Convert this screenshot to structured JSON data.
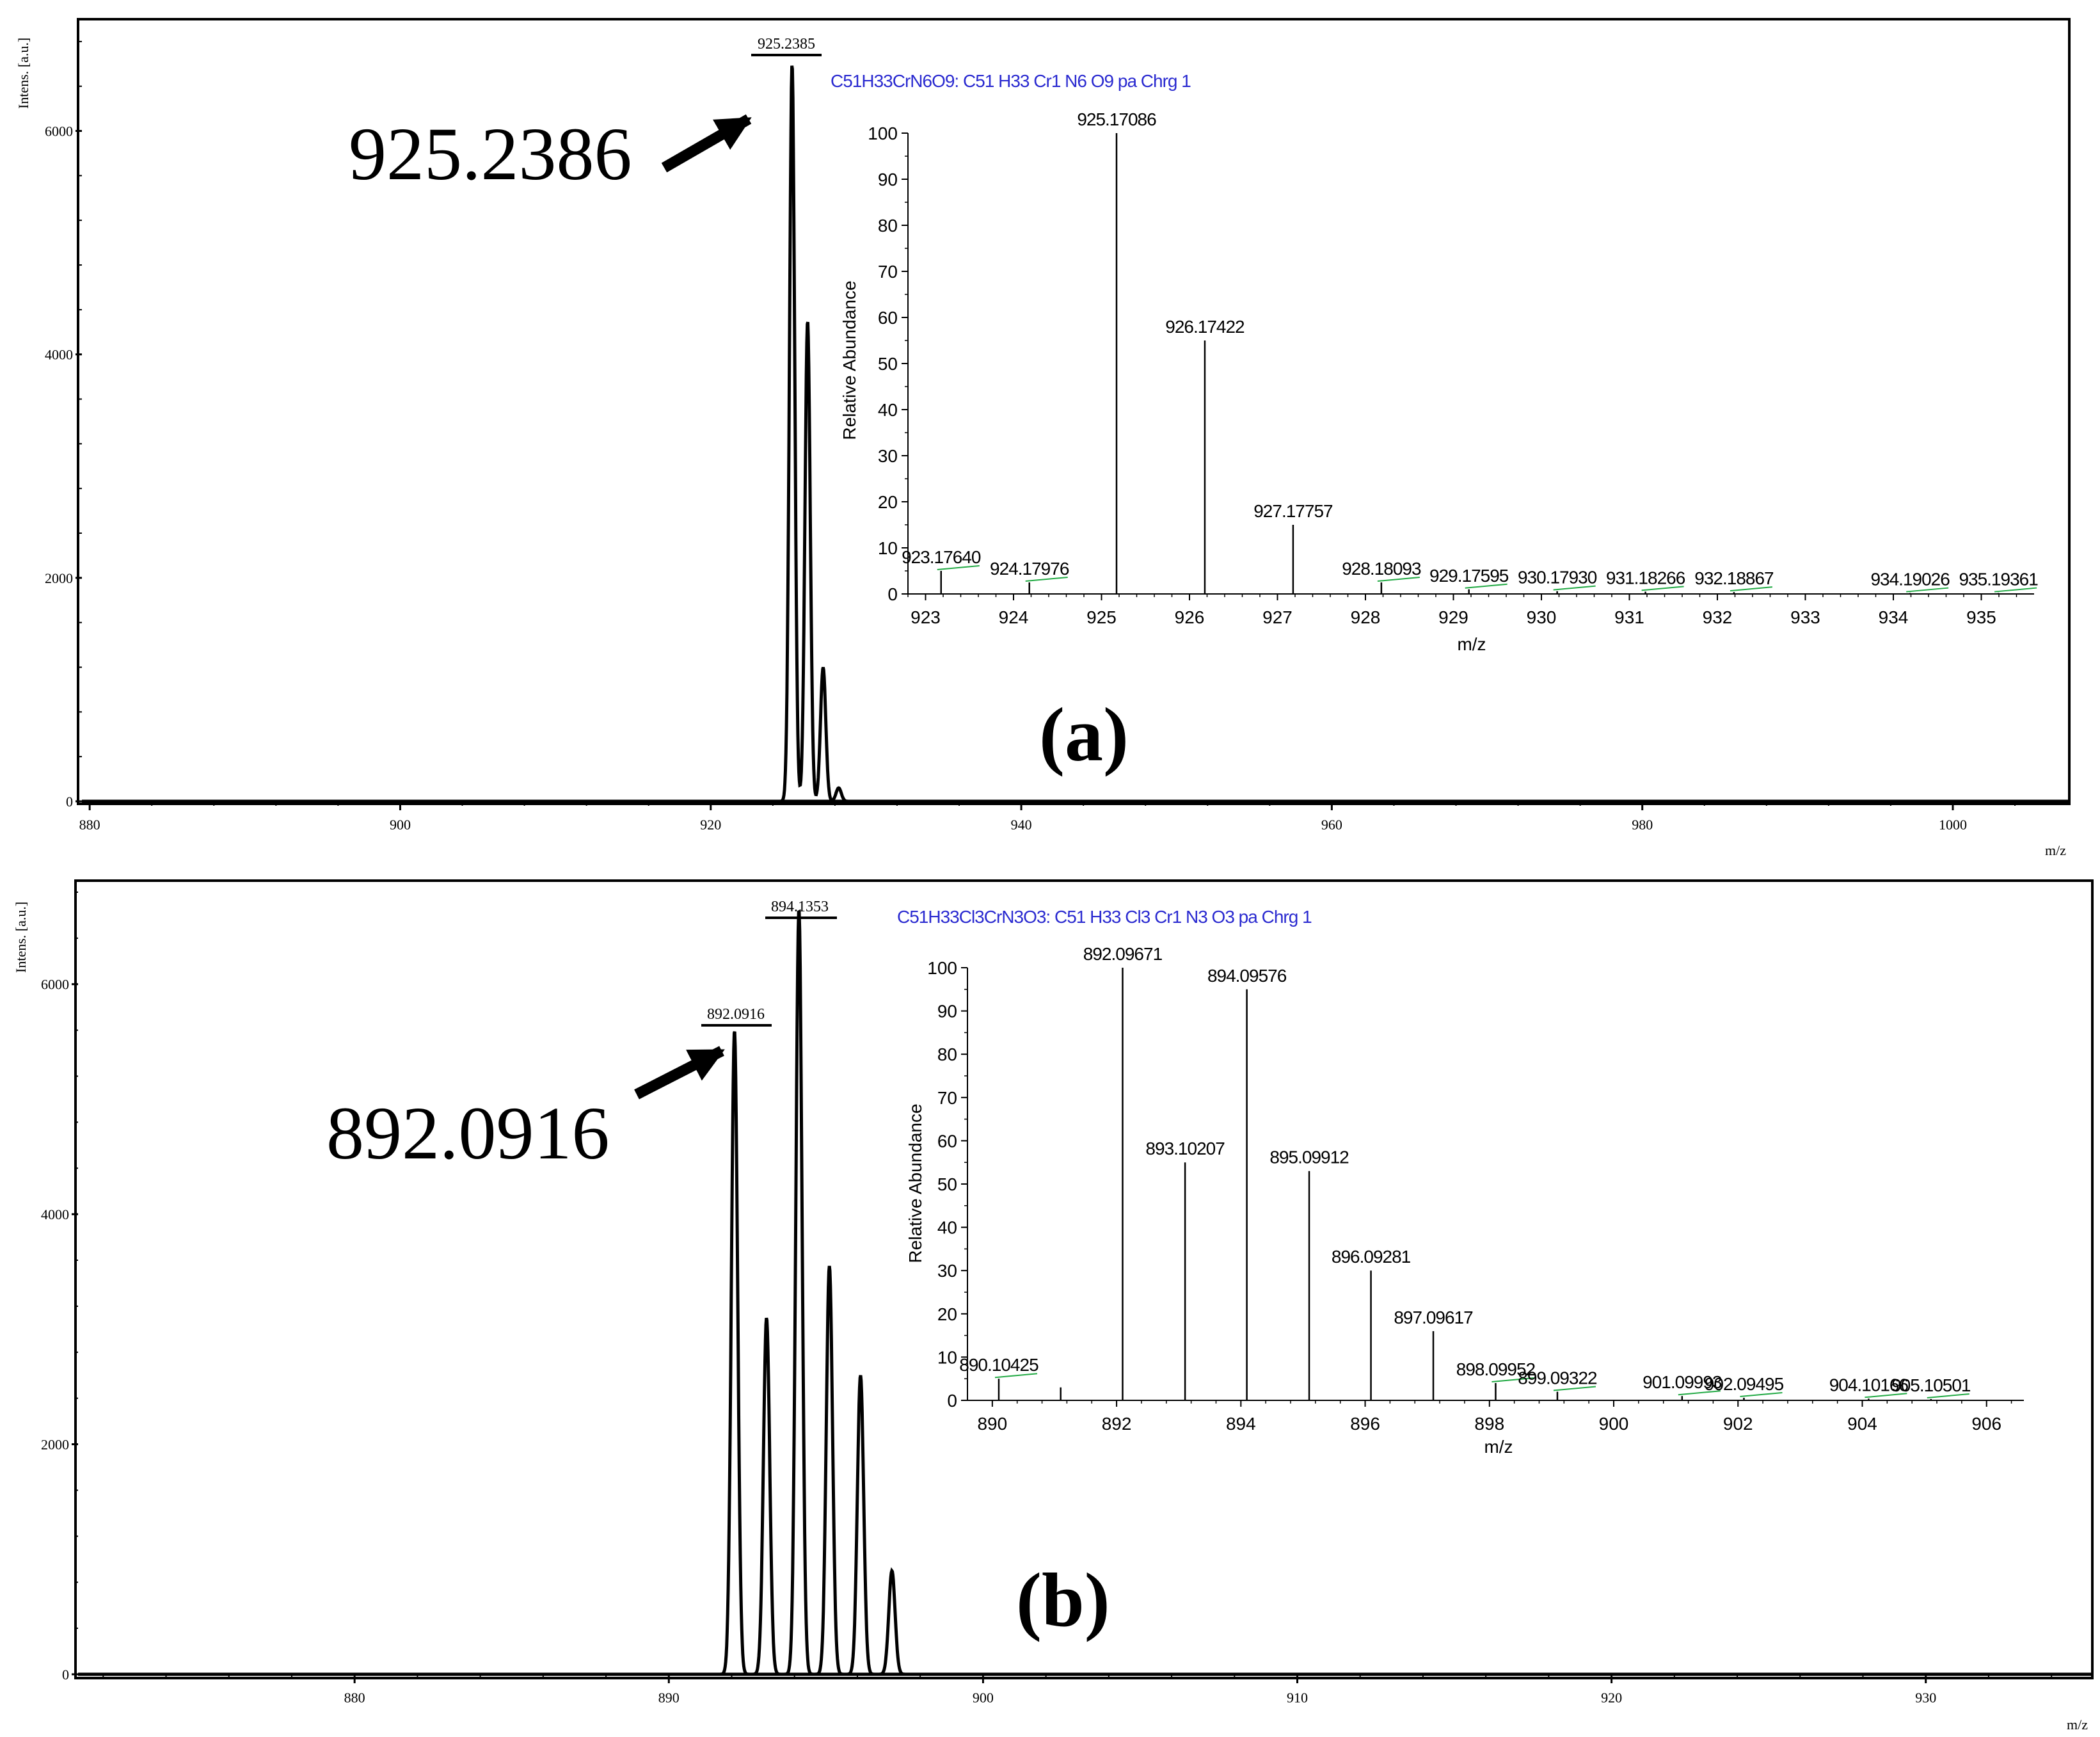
{
  "panels": [
    {
      "id": "a",
      "panel_label": "(a)",
      "arrow_label": "925.2386",
      "peak_label": "925.2385",
      "ylabel": "Intens. [a.u.]",
      "xlabel": "m/z",
      "inset_formula": "C51H33CrN6O9: C51 H33 Cr1 N6 O9 pa Chrg 1"
    },
    {
      "id": "b",
      "panel_label": "(b)",
      "arrow_label": "892.0916",
      "peak_labels": [
        "892.0916",
        "894.1353"
      ],
      "ylabel": "Intens. [a.u.]",
      "xlabel": "m/z",
      "inset_formula": "C51H33Cl3CrN3O3: C51 H33 Cl3 Cr1 N3 O3 pa Chrg 1"
    }
  ],
  "chart_data": [
    {
      "type": "line",
      "panel": "a-main",
      "ylabel": "Intens. [a.u.]",
      "xlabel": "m/z",
      "xlim": [
        879.5,
        1007.5
      ],
      "ylim": [
        0,
        7000
      ],
      "xticks": [
        880,
        900,
        920,
        940,
        960,
        980,
        1000
      ],
      "yticks": [
        0,
        2000,
        4000,
        6000
      ],
      "peaks": [
        {
          "x": 925.24,
          "y": 6600
        },
        {
          "x": 926.24,
          "y": 4300
        },
        {
          "x": 927.24,
          "y": 1200
        },
        {
          "x": 928.24,
          "y": 120
        }
      ],
      "annotations": [
        "925.2385",
        "925.2386"
      ]
    },
    {
      "type": "bar",
      "panel": "a-inset",
      "title": "C51H33CrN6O9: C51 H33 Cr1 N6 O9 pa Chrg 1",
      "xlabel": "m/z",
      "ylabel": "Relative Abundance",
      "xlim": [
        922.8,
        935.6
      ],
      "ylim": [
        0,
        100
      ],
      "xticks": [
        923,
        924,
        925,
        926,
        927,
        928,
        929,
        930,
        931,
        932,
        933,
        934,
        935
      ],
      "yticks": [
        0,
        10,
        20,
        30,
        40,
        50,
        60,
        70,
        80,
        90,
        100
      ],
      "peaks": [
        {
          "x": 923.1764,
          "y": 5,
          "label": "923.17640"
        },
        {
          "x": 924.17976,
          "y": 2.5,
          "label": "924.17976"
        },
        {
          "x": 925.17086,
          "y": 100,
          "label": "925.17086"
        },
        {
          "x": 926.17422,
          "y": 55,
          "label": "926.17422"
        },
        {
          "x": 927.17757,
          "y": 15,
          "label": "927.17757"
        },
        {
          "x": 928.18093,
          "y": 2.5,
          "label": "928.18093"
        },
        {
          "x": 929.17595,
          "y": 1,
          "label": "929.17595"
        },
        {
          "x": 930.1793,
          "y": 0.6,
          "label": "930.17930"
        },
        {
          "x": 931.18266,
          "y": 0.5,
          "label": "931.18266"
        },
        {
          "x": 932.18867,
          "y": 0.4,
          "label": "932.18867"
        },
        {
          "x": 934.19026,
          "y": 0.2,
          "label": "934.19026"
        },
        {
          "x": 935.19361,
          "y": 0.2,
          "label": "935.19361"
        }
      ]
    },
    {
      "type": "line",
      "panel": "b-main",
      "ylabel": "Intens. [a.u.]",
      "xlabel": "m/z",
      "xlim": [
        871.2,
        935.3
      ],
      "ylim": [
        0,
        6900
      ],
      "xticks": [
        880,
        890,
        900,
        910,
        920,
        930
      ],
      "yticks": [
        0,
        2000,
        4000,
        6000
      ],
      "peaks": [
        {
          "x": 892.09,
          "y": 5600
        },
        {
          "x": 893.11,
          "y": 3100
        },
        {
          "x": 894.14,
          "y": 6650
        },
        {
          "x": 895.11,
          "y": 3550
        },
        {
          "x": 896.1,
          "y": 2600
        },
        {
          "x": 897.1,
          "y": 900
        }
      ],
      "annotations": [
        "892.0916",
        "894.1353",
        "892.0916"
      ]
    },
    {
      "type": "bar",
      "panel": "b-inset",
      "title": "C51H33Cl3CrN3O3: C51 H33 Cl3 Cr1 N3 O3 pa Chrg 1",
      "xlabel": "m/z",
      "ylabel": "Relative Abundance",
      "xlim": [
        889.6,
        906.6
      ],
      "ylim": [
        0,
        100
      ],
      "xticks": [
        890,
        892,
        894,
        896,
        898,
        900,
        902,
        904,
        906
      ],
      "yticks": [
        0,
        10,
        20,
        30,
        40,
        50,
        60,
        70,
        80,
        90,
        100
      ],
      "peaks": [
        {
          "x": 890.10425,
          "y": 5,
          "label": "890.10425"
        },
        {
          "x": 891.1,
          "y": 3,
          "label": ""
        },
        {
          "x": 892.09671,
          "y": 100,
          "label": "892.09671"
        },
        {
          "x": 893.10207,
          "y": 55,
          "label": "893.10207"
        },
        {
          "x": 894.09576,
          "y": 95,
          "label": "894.09576"
        },
        {
          "x": 895.09912,
          "y": 53,
          "label": "895.09912"
        },
        {
          "x": 896.09281,
          "y": 30,
          "label": "896.09281"
        },
        {
          "x": 897.09617,
          "y": 16,
          "label": "897.09617"
        },
        {
          "x": 898.09952,
          "y": 4,
          "label": "898.09952"
        },
        {
          "x": 899.09322,
          "y": 2,
          "label": "899.09322"
        },
        {
          "x": 901.09993,
          "y": 1,
          "label": "901.09993"
        },
        {
          "x": 902.09495,
          "y": 0.6,
          "label": "902.09495"
        },
        {
          "x": 904.10166,
          "y": 0.4,
          "label": "904.10166"
        },
        {
          "x": 905.10501,
          "y": 0.3,
          "label": "905.10501"
        }
      ]
    }
  ]
}
